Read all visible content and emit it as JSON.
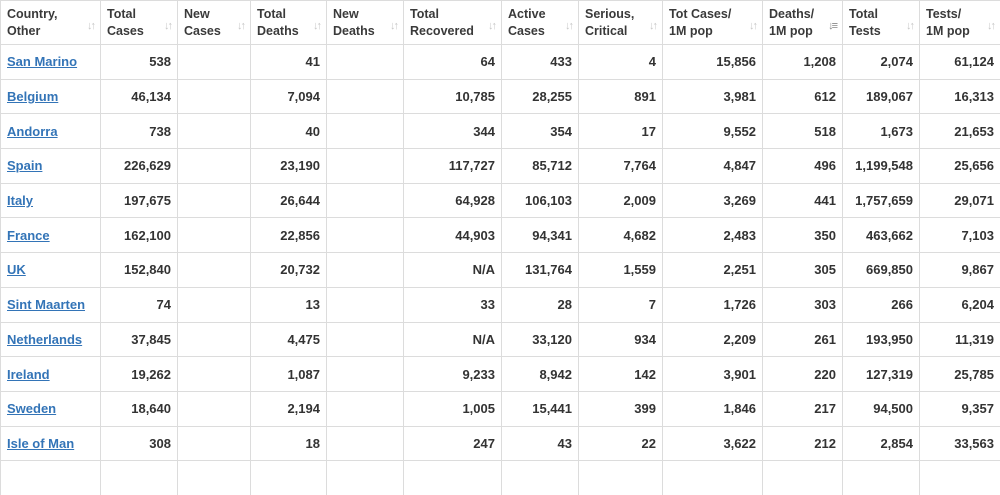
{
  "table": {
    "columns": [
      {
        "key": "country",
        "label": "Country, Other",
        "sort_active": false
      },
      {
        "key": "total_cases",
        "label": "Total Cases",
        "sort_active": false
      },
      {
        "key": "new_cases",
        "label": "New Cases",
        "sort_active": false
      },
      {
        "key": "total_deaths",
        "label": "Total Deaths",
        "sort_active": false
      },
      {
        "key": "new_deaths",
        "label": "New Deaths",
        "sort_active": false
      },
      {
        "key": "total_recovered",
        "label": "Total Recovered",
        "sort_active": false
      },
      {
        "key": "active_cases",
        "label": "Active Cases",
        "sort_active": false
      },
      {
        "key": "serious_critical",
        "label": "Serious, Critical",
        "sort_active": false
      },
      {
        "key": "tot_cases_1m",
        "label": "Tot Cases/ 1M pop",
        "sort_active": false
      },
      {
        "key": "deaths_1m",
        "label": "Deaths/ 1M pop",
        "sort_active": true
      },
      {
        "key": "total_tests",
        "label": "Total Tests",
        "sort_active": false
      },
      {
        "key": "tests_1m",
        "label": "Tests/ 1M pop",
        "sort_active": false
      }
    ],
    "sort_icon_inactive": "↓↑",
    "sort_icon_active": "↓≡",
    "rows": [
      [
        "San Marino",
        "538",
        "",
        "41",
        "",
        "64",
        "433",
        "4",
        "15,856",
        "1,208",
        "2,074",
        "61,124"
      ],
      [
        "Belgium",
        "46,134",
        "",
        "7,094",
        "",
        "10,785",
        "28,255",
        "891",
        "3,981",
        "612",
        "189,067",
        "16,313"
      ],
      [
        "Andorra",
        "738",
        "",
        "40",
        "",
        "344",
        "354",
        "17",
        "9,552",
        "518",
        "1,673",
        "21,653"
      ],
      [
        "Spain",
        "226,629",
        "",
        "23,190",
        "",
        "117,727",
        "85,712",
        "7,764",
        "4,847",
        "496",
        "1,199,548",
        "25,656"
      ],
      [
        "Italy",
        "197,675",
        "",
        "26,644",
        "",
        "64,928",
        "106,103",
        "2,009",
        "3,269",
        "441",
        "1,757,659",
        "29,071"
      ],
      [
        "France",
        "162,100",
        "",
        "22,856",
        "",
        "44,903",
        "94,341",
        "4,682",
        "2,483",
        "350",
        "463,662",
        "7,103"
      ],
      [
        "UK",
        "152,840",
        "",
        "20,732",
        "",
        "N/A",
        "131,764",
        "1,559",
        "2,251",
        "305",
        "669,850",
        "9,867"
      ],
      [
        "Sint Maarten",
        "74",
        "",
        "13",
        "",
        "33",
        "28",
        "7",
        "1,726",
        "303",
        "266",
        "6,204"
      ],
      [
        "Netherlands",
        "37,845",
        "",
        "4,475",
        "",
        "N/A",
        "33,120",
        "934",
        "2,209",
        "261",
        "193,950",
        "11,319"
      ],
      [
        "Ireland",
        "19,262",
        "",
        "1,087",
        "",
        "9,233",
        "8,942",
        "142",
        "3,901",
        "220",
        "127,319",
        "25,785"
      ],
      [
        "Sweden",
        "18,640",
        "",
        "2,194",
        "",
        "1,005",
        "15,441",
        "399",
        "1,846",
        "217",
        "94,500",
        "9,357"
      ],
      [
        "Isle of Man",
        "308",
        "",
        "18",
        "",
        "247",
        "43",
        "22",
        "3,622",
        "212",
        "2,854",
        "33,563"
      ]
    ]
  }
}
